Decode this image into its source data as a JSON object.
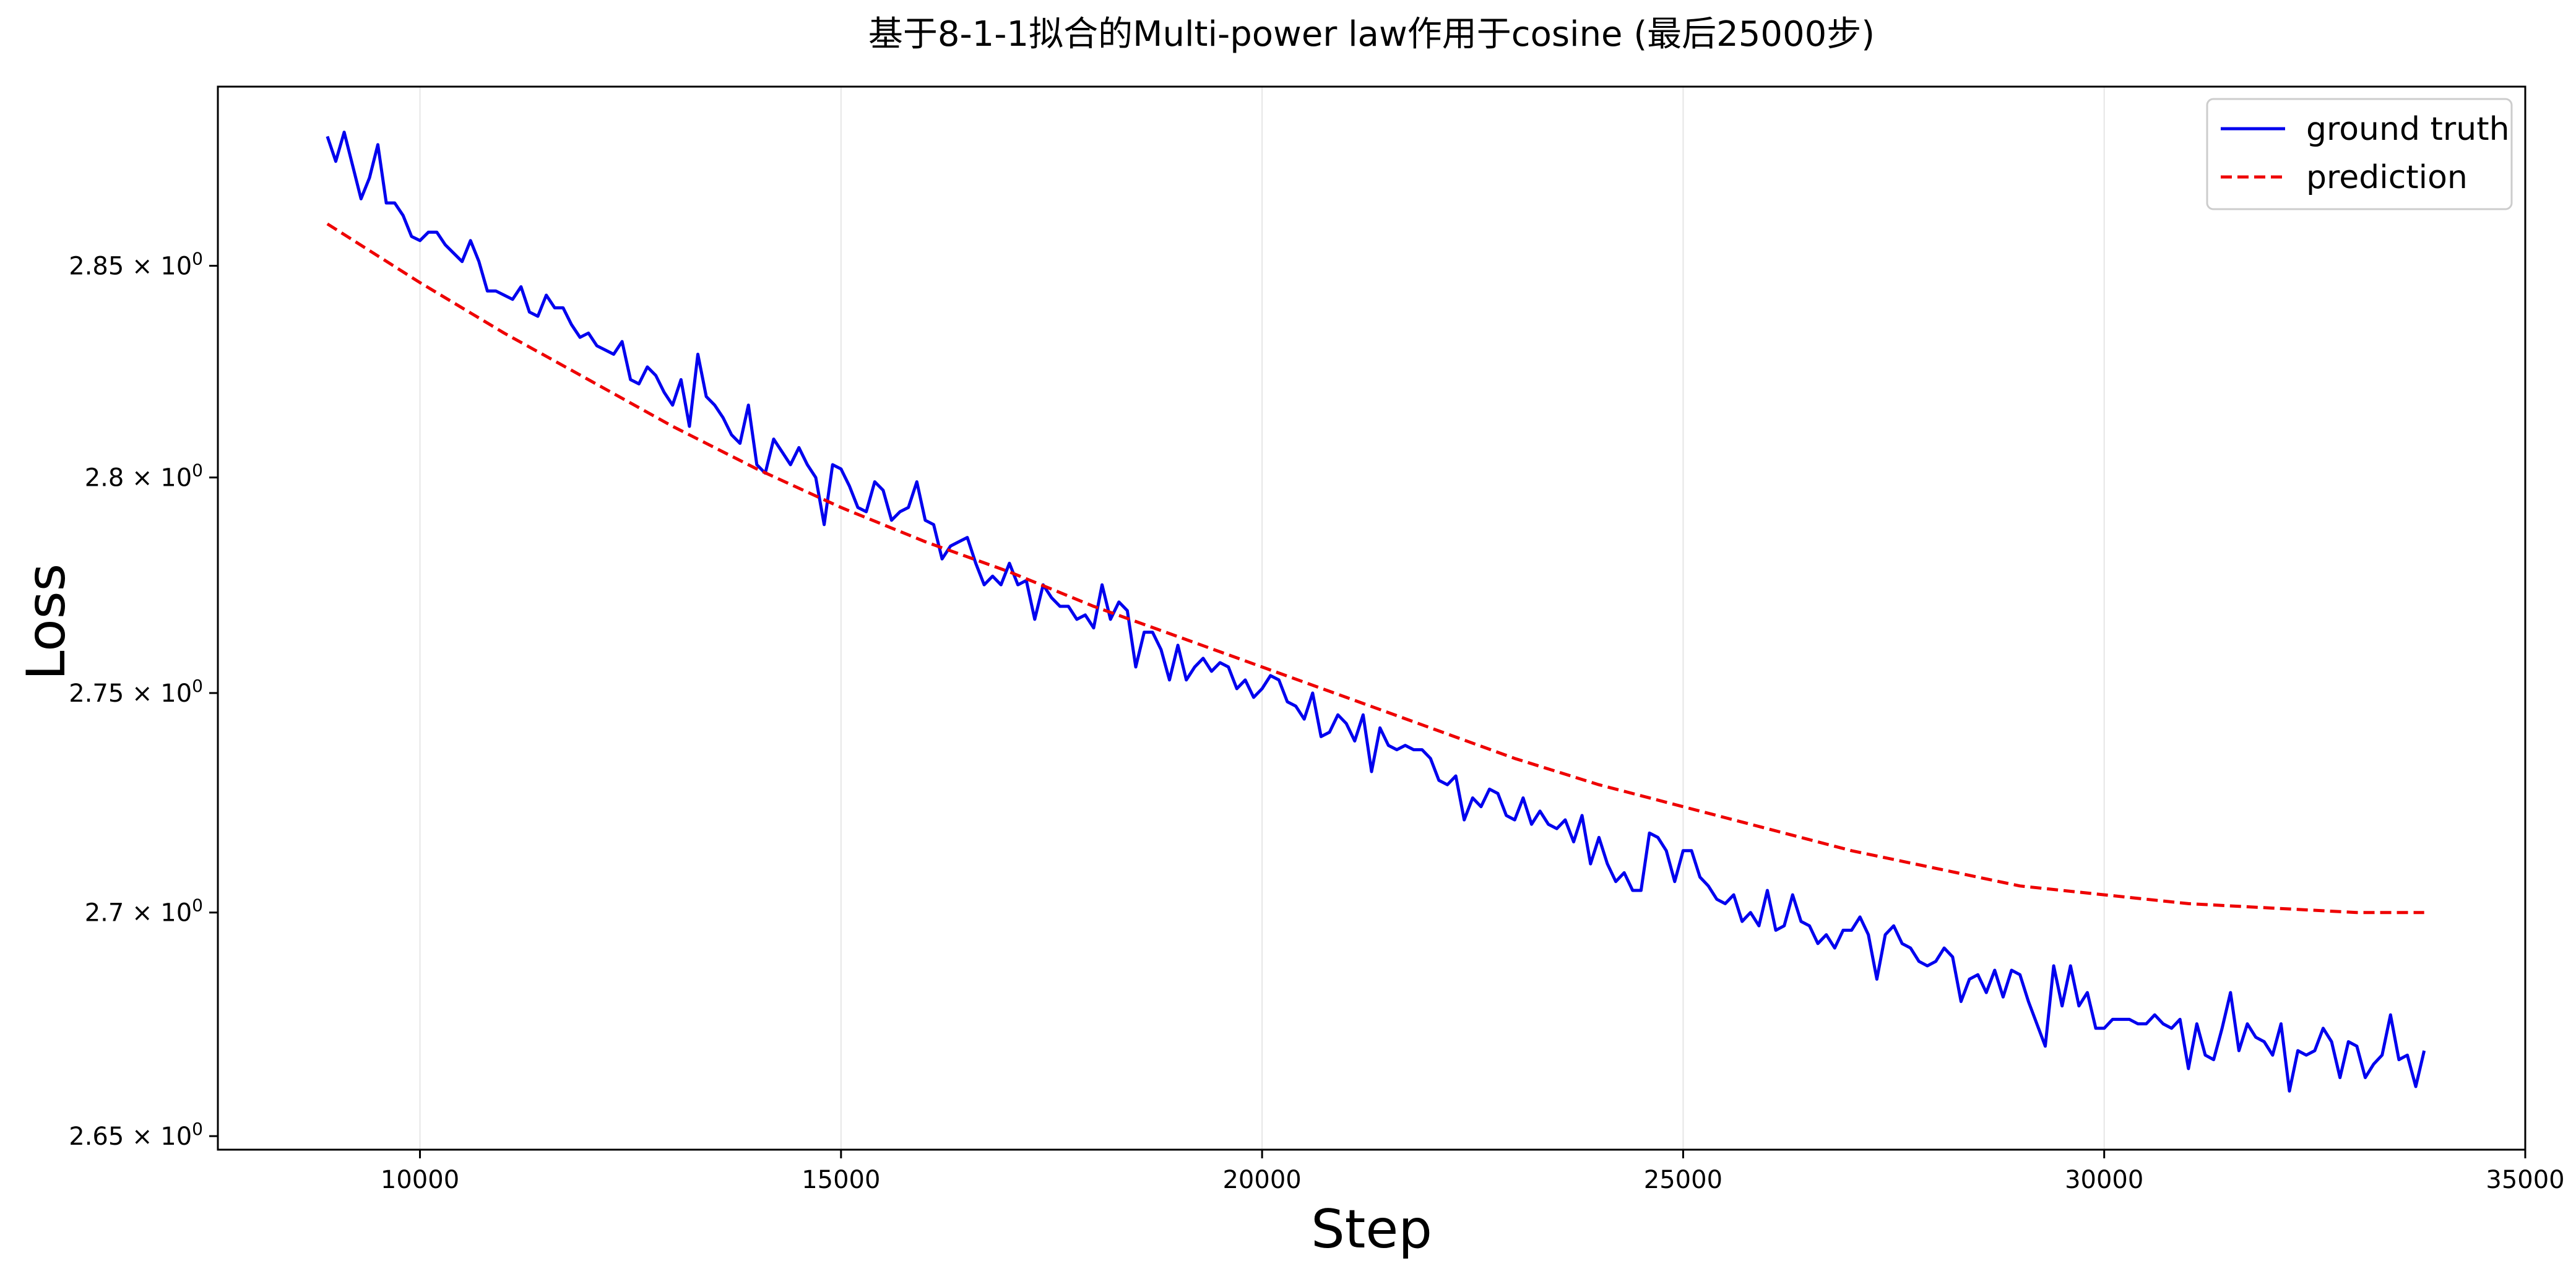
{
  "chart_data": {
    "type": "line",
    "title": "基于8-1-1拟合的Multi-power law作用于cosine (最后25000步)",
    "xlabel": "Step",
    "ylabel": "Loss",
    "xlim": [
      7600,
      35000
    ],
    "ylim": [
      2.647,
      2.893
    ],
    "yscale": "log",
    "grid": {
      "x": true,
      "y": false
    },
    "legend_position": "top-right",
    "x_ticks": [
      10000,
      15000,
      20000,
      25000,
      30000,
      35000
    ],
    "x_tick_labels": [
      "10000",
      "15000",
      "20000",
      "25000",
      "30000",
      "35000"
    ],
    "y_ticks": [
      {
        "value": 2.65,
        "mantissa": "2.65",
        "exponent": "0"
      },
      {
        "value": 2.7,
        "mantissa": "2.7",
        "exponent": "0"
      },
      {
        "value": 2.75,
        "mantissa": "2.75",
        "exponent": "0"
      },
      {
        "value": 2.8,
        "mantissa": "2.8",
        "exponent": "0"
      },
      {
        "value": 2.85,
        "mantissa": "2.85",
        "exponent": "0"
      }
    ],
    "y_tick_times": "×",
    "series": [
      {
        "name": "ground truth",
        "color": "#0000ee",
        "style": "solid",
        "x": [
          8900,
          9000,
          9100,
          9200,
          9300,
          9400,
          9500,
          9600,
          9700,
          9800,
          9900,
          10000,
          10100,
          10200,
          10300,
          10400,
          10500,
          10600,
          10700,
          10800,
          10900,
          11000,
          11100,
          11200,
          11300,
          11400,
          11500,
          11600,
          11700,
          11800,
          11900,
          12000,
          12100,
          12200,
          12300,
          12400,
          12500,
          12600,
          12700,
          12800,
          12900,
          13000,
          13100,
          13200,
          13300,
          13400,
          13500,
          13600,
          13700,
          13800,
          13900,
          14000,
          14100,
          14200,
          14300,
          14400,
          14500,
          14600,
          14700,
          14800,
          14900,
          15000,
          15100,
          15200,
          15300,
          15400,
          15500,
          15600,
          15700,
          15800,
          15900,
          16000,
          16100,
          16200,
          16300,
          16400,
          16500,
          16600,
          16700,
          16800,
          16900,
          17000,
          17100,
          17200,
          17300,
          17400,
          17500,
          17600,
          17700,
          17800,
          17900,
          18000,
          18100,
          18200,
          18300,
          18400,
          18500,
          18600,
          18700,
          18800,
          18900,
          19000,
          19100,
          19200,
          19300,
          19400,
          19500,
          19600,
          19700,
          19800,
          19900,
          20000,
          20100,
          20200,
          20300,
          20400,
          20500,
          20600,
          20700,
          20800,
          20900,
          21000,
          21100,
          21200,
          21300,
          21400,
          21500,
          21600,
          21700,
          21800,
          21900,
          22000,
          22100,
          22200,
          22300,
          22400,
          22500,
          22600,
          22700,
          22800,
          22900,
          23000,
          23100,
          23200,
          23300,
          23400,
          23500,
          23600,
          23700,
          23800,
          23900,
          24000,
          24100,
          24200,
          24300,
          24400,
          24500,
          24600,
          24700,
          24800,
          24900,
          25000,
          25100,
          25200,
          25300,
          25400,
          25500,
          25600,
          25700,
          25800,
          25900,
          26000,
          26100,
          26200,
          26300,
          26400,
          26500,
          26600,
          26700,
          26800,
          26900,
          27000,
          27100,
          27200,
          27300,
          27400,
          27500,
          27600,
          27700,
          27800,
          27900,
          28000,
          28100,
          28200,
          28300,
          28400,
          28500,
          28600,
          28700,
          28800,
          28900,
          29000,
          29100,
          29200,
          29300,
          29400,
          29500,
          29600,
          29700,
          29800,
          29900,
          30000,
          30100,
          30200,
          30300,
          30400,
          30500,
          30600,
          30700,
          30800,
          30900,
          31000,
          31100,
          31200,
          31300,
          31400,
          31500,
          31600,
          31700,
          31800,
          31900,
          32000,
          32100,
          32200,
          32300,
          32400,
          32500,
          32600,
          32700,
          32800,
          32900,
          33000,
          33100,
          33200,
          33300,
          33400,
          33500,
          33600,
          33700,
          33800
        ],
        "values": [
          2.881,
          2.875,
          2.882,
          2.874,
          2.866,
          2.871,
          2.879,
          2.865,
          2.865,
          2.862,
          2.857,
          2.856,
          2.858,
          2.858,
          2.855,
          2.853,
          2.851,
          2.856,
          2.851,
          2.844,
          2.844,
          2.843,
          2.842,
          2.845,
          2.839,
          2.838,
          2.843,
          2.84,
          2.84,
          2.836,
          2.833,
          2.834,
          2.831,
          2.83,
          2.829,
          2.832,
          2.823,
          2.822,
          2.826,
          2.824,
          2.82,
          2.817,
          2.823,
          2.812,
          2.829,
          2.819,
          2.817,
          2.814,
          2.81,
          2.808,
          2.817,
          2.803,
          2.801,
          2.809,
          2.806,
          2.803,
          2.807,
          2.803,
          2.8,
          2.789,
          2.803,
          2.802,
          2.798,
          2.793,
          2.792,
          2.799,
          2.797,
          2.79,
          2.792,
          2.793,
          2.799,
          2.79,
          2.789,
          2.781,
          2.784,
          2.785,
          2.786,
          2.78,
          2.775,
          2.777,
          2.775,
          2.78,
          2.775,
          2.776,
          2.767,
          2.775,
          2.772,
          2.77,
          2.77,
          2.767,
          2.768,
          2.765,
          2.775,
          2.767,
          2.771,
          2.769,
          2.756,
          2.764,
          2.764,
          2.76,
          2.753,
          2.761,
          2.753,
          2.756,
          2.758,
          2.755,
          2.757,
          2.756,
          2.751,
          2.753,
          2.749,
          2.751,
          2.754,
          2.753,
          2.748,
          2.747,
          2.744,
          2.75,
          2.74,
          2.741,
          2.745,
          2.743,
          2.739,
          2.745,
          2.732,
          2.742,
          2.738,
          2.737,
          2.738,
          2.737,
          2.737,
          2.735,
          2.73,
          2.729,
          2.731,
          2.721,
          2.726,
          2.724,
          2.728,
          2.727,
          2.722,
          2.721,
          2.726,
          2.72,
          2.723,
          2.72,
          2.719,
          2.721,
          2.716,
          2.722,
          2.711,
          2.717,
          2.711,
          2.707,
          2.709,
          2.705,
          2.705,
          2.718,
          2.717,
          2.714,
          2.707,
          2.714,
          2.714,
          2.708,
          2.706,
          2.703,
          2.702,
          2.704,
          2.698,
          2.7,
          2.697,
          2.705,
          2.696,
          2.697,
          2.704,
          2.698,
          2.697,
          2.693,
          2.695,
          2.692,
          2.696,
          2.696,
          2.699,
          2.695,
          2.685,
          2.695,
          2.697,
          2.693,
          2.692,
          2.689,
          2.688,
          2.689,
          2.692,
          2.69,
          2.68,
          2.685,
          2.686,
          2.682,
          2.687,
          2.681,
          2.687,
          2.686,
          2.68,
          2.675,
          2.67,
          2.688,
          2.679,
          2.688,
          2.679,
          2.682,
          2.674,
          2.674,
          2.676,
          2.676,
          2.676,
          2.675,
          2.675,
          2.677,
          2.675,
          2.674,
          2.676,
          2.665,
          2.675,
          2.668,
          2.667,
          2.674,
          2.682,
          2.669,
          2.675,
          2.672,
          2.671,
          2.668,
          2.675,
          2.66,
          2.669,
          2.668,
          2.669,
          2.674,
          2.671,
          2.663,
          2.671,
          2.67,
          2.663,
          2.666,
          2.668,
          2.677,
          2.667,
          2.668,
          2.661,
          2.669
        ]
      },
      {
        "name": "prediction",
        "color": "#ee0000",
        "style": "dashed",
        "x": [
          8900,
          10000,
          11000,
          12000,
          13000,
          14000,
          15000,
          16000,
          17000,
          18000,
          19000,
          20000,
          21000,
          22000,
          23000,
          24000,
          25000,
          26000,
          27000,
          28000,
          29000,
          30000,
          31000,
          32000,
          33000,
          33800
        ],
        "values": [
          2.86,
          2.846,
          2.834,
          2.823,
          2.812,
          2.802,
          2.793,
          2.785,
          2.778,
          2.77,
          2.763,
          2.756,
          2.749,
          2.742,
          2.735,
          2.729,
          2.724,
          2.719,
          2.714,
          2.71,
          2.706,
          2.704,
          2.702,
          2.701,
          2.7,
          2.7
        ]
      }
    ]
  }
}
